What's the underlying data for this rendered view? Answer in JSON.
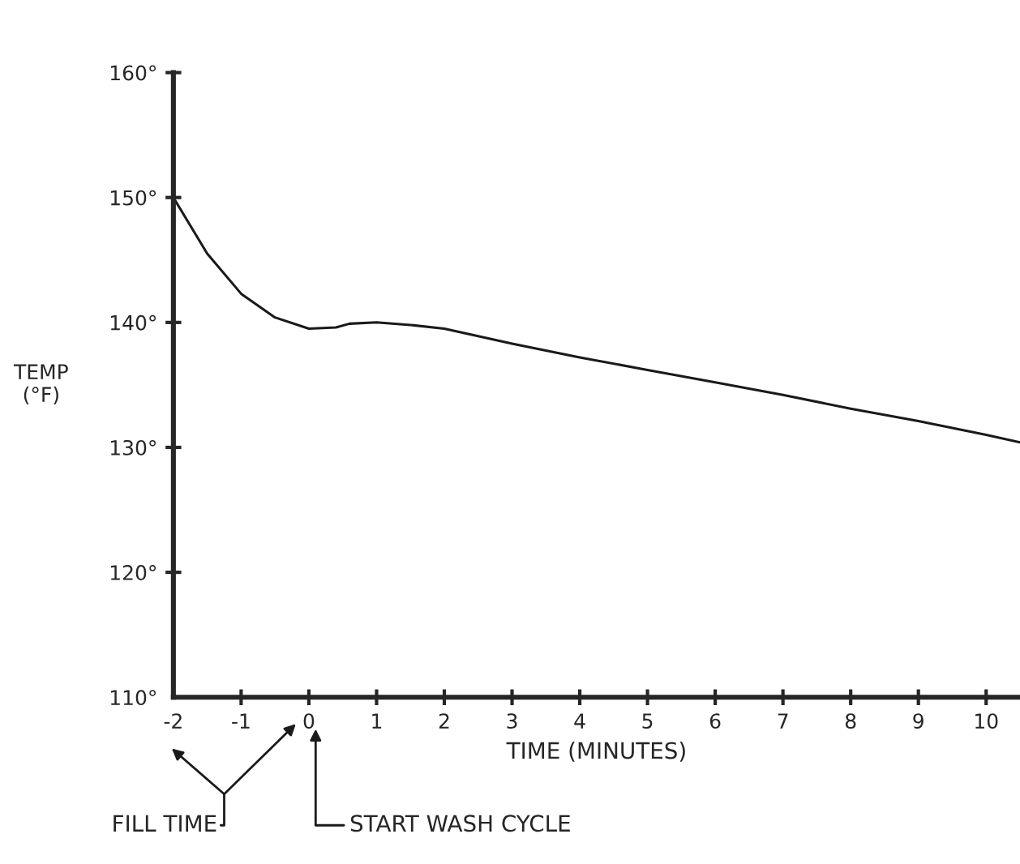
{
  "chart_data": {
    "type": "line",
    "xlabel": "TIME (MINUTES)",
    "ylabel": "TEMP\n(°F)",
    "x": [
      -2,
      -1.5,
      -1,
      -0.5,
      0,
      0.4,
      0.6,
      1,
      1.5,
      2,
      3,
      4,
      5,
      6,
      7,
      8,
      9,
      10,
      10.5
    ],
    "series": [
      {
        "color": "#1a1a1a",
        "values": [
          150,
          145.5,
          142.3,
          140.4,
          139.5,
          139.6,
          139.9,
          140,
          139.8,
          139.5,
          138.3,
          137.2,
          136.2,
          135.2,
          134.2,
          133.1,
          132.1,
          131,
          130.4
        ]
      }
    ],
    "xlim": [
      -2,
      10.5
    ],
    "xticks": [
      -2,
      -1,
      0,
      1,
      2,
      3,
      4,
      5,
      6,
      7,
      8,
      9,
      10
    ],
    "ylim": [
      110,
      160
    ],
    "yticks": [
      {
        "value": 110,
        "label": "110°"
      },
      {
        "value": 120,
        "label": "120°"
      },
      {
        "value": 130,
        "label": "130°"
      },
      {
        "value": 140,
        "label": "140°"
      },
      {
        "value": 150,
        "label": "150°"
      },
      {
        "value": 160,
        "label": "160°"
      }
    ],
    "annotations": [
      "FILL TIME",
      "START WASH CYCLE"
    ],
    "grid": false,
    "legend": false,
    "marker": "none",
    "line_style": "solid"
  }
}
